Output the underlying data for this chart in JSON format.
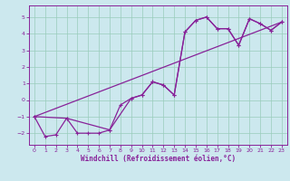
{
  "xlabel": "Windchill (Refroidissement éolien,°C)",
  "bg_color": "#cce8ee",
  "grid_color": "#99ccbb",
  "line_color": "#882299",
  "spine_color": "#882299",
  "xlim": [
    -0.5,
    23.5
  ],
  "ylim": [
    -2.7,
    5.7
  ],
  "xticks": [
    0,
    1,
    2,
    3,
    4,
    5,
    6,
    7,
    8,
    9,
    10,
    11,
    12,
    13,
    14,
    15,
    16,
    17,
    18,
    19,
    20,
    21,
    22,
    23
  ],
  "yticks": [
    -2,
    -1,
    0,
    1,
    2,
    3,
    4,
    5
  ],
  "tick_fontsize": 4.5,
  "xlabel_fontsize": 5.5,
  "line1_x": [
    0,
    1,
    2,
    3,
    4,
    5,
    6,
    7,
    8,
    9,
    10,
    11,
    12,
    13,
    14,
    15,
    16,
    17,
    18,
    19,
    20,
    21,
    22,
    23
  ],
  "line1_y": [
    -1.0,
    -2.2,
    -2.1,
    -1.1,
    -2.0,
    -2.0,
    -2.0,
    -1.8,
    -0.3,
    0.1,
    0.3,
    1.1,
    0.9,
    0.3,
    4.1,
    4.8,
    5.0,
    4.3,
    4.3,
    3.3,
    4.9,
    4.6,
    4.2,
    4.7
  ],
  "line2_x": [
    0,
    3,
    7,
    9,
    10,
    11,
    12,
    13,
    14,
    15,
    16,
    17,
    18,
    19,
    20,
    21,
    22,
    23
  ],
  "line2_y": [
    -1.0,
    -1.1,
    -1.8,
    0.1,
    0.3,
    1.1,
    0.9,
    0.3,
    4.1,
    4.8,
    5.0,
    4.3,
    4.3,
    3.3,
    4.9,
    4.6,
    4.2,
    4.7
  ],
  "line3_x": [
    0,
    23
  ],
  "line3_y": [
    -1.0,
    4.7
  ]
}
